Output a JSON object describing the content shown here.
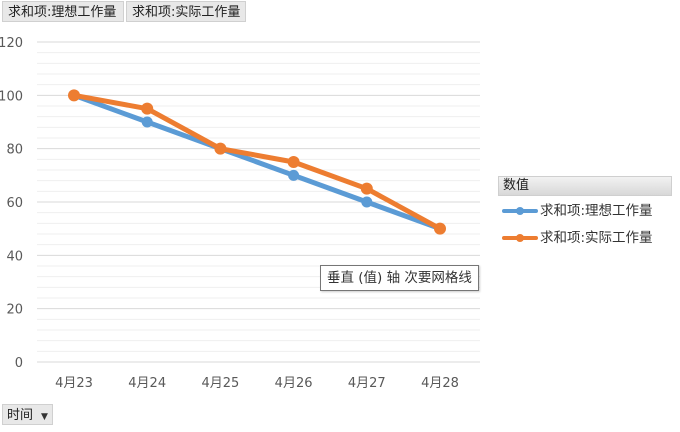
{
  "field_buttons": [
    "求和项:理想工作量",
    "求和项:实际工作量"
  ],
  "legend": {
    "title": "数值",
    "items": [
      "求和项:理想工作量",
      "求和项:实际工作量"
    ]
  },
  "tooltip": "垂直 (值) 轴 次要网格线",
  "axis_field_button": "时间",
  "colors": {
    "series1": "#5b9bd5",
    "series2": "#ed7d31",
    "gridline": "#d9d9d9",
    "minor_gridline": "#efefef"
  },
  "chart_data": {
    "type": "line",
    "categories": [
      "4月23",
      "4月24",
      "4月25",
      "4月26",
      "4月27",
      "4月28"
    ],
    "series": [
      {
        "name": "求和项:理想工作量",
        "values": [
          100,
          90,
          80,
          70,
          60,
          50
        ]
      },
      {
        "name": "求和项:实际工作量",
        "values": [
          100,
          95,
          80,
          75,
          65,
          50
        ]
      }
    ],
    "yticks": [
      "0",
      "20",
      "40",
      "60",
      "80",
      "100",
      "120"
    ],
    "ylim": [
      0,
      120
    ],
    "xlabel": "",
    "ylabel": "",
    "grid": true,
    "minor_grid": true,
    "legend_position": "right"
  }
}
